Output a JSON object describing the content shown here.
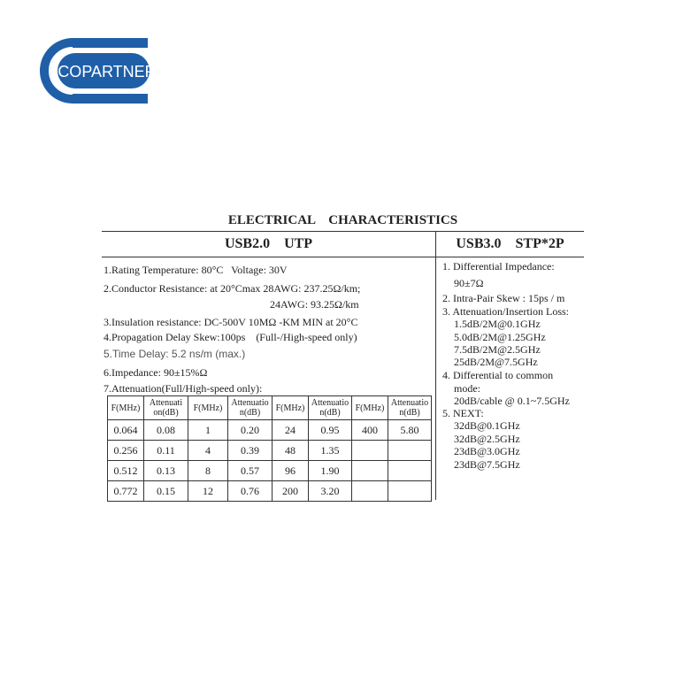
{
  "logo": {
    "text": "COPARTNER",
    "color": "#1f5fa8"
  },
  "title": "ELECTRICAL    CHARACTERISTICS",
  "usb2": {
    "heading": "USB2.0    UTP",
    "items": [
      "1.Rating Temperature: 80°C   Voltage: 30V",
      "2.Conductor Resistance: at 20°Cmax 28AWG: 237.25Ω/km;",
      "24AWG: 93.25Ω/km",
      "3.Insulation resistance: DC-500V 10MΩ -KM MIN at 20°C",
      "4.Propagation Delay Skew:100ps    (Full-/High-speed only)",
      "5.Time Delay: 5.2 ns/m (max.)",
      "6.Impedance: 90±15%Ω",
      "7.Attenuation(Full/High-speed only):"
    ],
    "table": {
      "headers": [
        "F(MHz)",
        "Attenuati on(dB)",
        "F(MHz)",
        "Attenuatio n(dB)",
        "F(MHz)",
        "Attenuatio n(dB)",
        "F(MHz)",
        "Attenuatio n(dB)"
      ],
      "rows": [
        [
          "0.064",
          "0.08",
          "1",
          "0.20",
          "24",
          "0.95",
          "400",
          "5.80"
        ],
        [
          "0.256",
          "0.11",
          "4",
          "0.39",
          "48",
          "1.35",
          "",
          ""
        ],
        [
          "0.512",
          "0.13",
          "8",
          "0.57",
          "96",
          "1.90",
          "",
          ""
        ],
        [
          "0.772",
          "0.15",
          "12",
          "0.76",
          "200",
          "3.20",
          "",
          ""
        ]
      ]
    }
  },
  "usb3": {
    "heading": "USB3.0    STP*2P",
    "items": [
      "1. Differential Impedance:",
      "90±7Ω",
      "2. Intra-Pair Skew : 15ps / m",
      "3. Attenuation/Insertion Loss:",
      "1.5dB/2M@0.1GHz",
      "5.0dB/2M@1.25GHz",
      "7.5dB/2M@2.5GHz",
      "25dB/2M@7.5GHz",
      "4. Differential to common",
      "mode:",
      "20dB/cable @ 0.1~7.5GHz",
      "5. NEXT:",
      "32dB@0.1GHz",
      "32dB@2.5GHz",
      "23dB@3.0GHz",
      "23dB@7.5GHz"
    ]
  }
}
